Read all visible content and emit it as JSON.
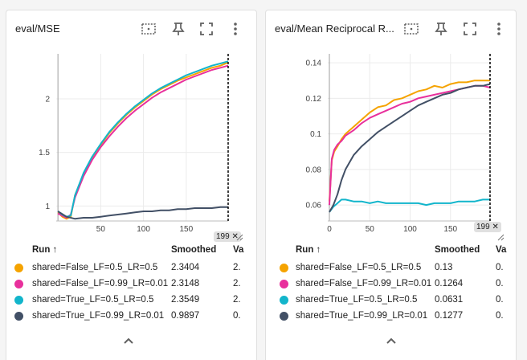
{
  "cards": [
    {
      "title": "eval/MSE",
      "table_headers": {
        "run": "Run ↑",
        "smoothed": "Smoothed",
        "value": "Va"
      },
      "rows": [
        {
          "name": "shared=False_LF=0.5_LR=0.5",
          "smoothed": "2.3404",
          "value": "2.",
          "color": "#f5a300"
        },
        {
          "name": "shared=False_LF=0.99_LR=0.01",
          "smoothed": "2.3148",
          "value": "2.",
          "color": "#e8309c"
        },
        {
          "name": "shared=True_LF=0.5_LR=0.5",
          "smoothed": "2.3549",
          "value": "2.",
          "color": "#12b5cb"
        },
        {
          "name": "shared=True_LF=0.99_LR=0.01",
          "smoothed": "0.9897",
          "value": "0.",
          "color": "#425066"
        }
      ],
      "step_badge": "199 ✕"
    },
    {
      "title": "eval/Mean Reciprocal R...",
      "table_headers": {
        "run": "Run ↑",
        "smoothed": "Smoothed",
        "value": "Va"
      },
      "rows": [
        {
          "name": "shared=False_LF=0.5_LR=0.5",
          "smoothed": "0.13",
          "value": "0.",
          "color": "#f5a300"
        },
        {
          "name": "shared=False_LF=0.99_LR=0.01",
          "smoothed": "0.1264",
          "value": "0.",
          "color": "#e8309c"
        },
        {
          "name": "shared=True_LF=0.5_LR=0.5",
          "smoothed": "0.0631",
          "value": "0.",
          "color": "#12b5cb"
        },
        {
          "name": "shared=True_LF=0.99_LR=0.01",
          "smoothed": "0.1277",
          "value": "0.",
          "color": "#425066"
        }
      ],
      "step_badge": "199 ✕"
    }
  ],
  "toolbar_icons": [
    "fit-domain-icon",
    "pin-icon",
    "fullscreen-icon",
    "more-vert-icon"
  ],
  "chart_data": [
    {
      "type": "line",
      "title": "eval/MSE",
      "xlabel": "",
      "ylabel": "",
      "xlim": [
        -2,
        199
      ],
      "ylim": [
        0.86,
        2.42
      ],
      "x_ticks": [
        "50",
        "100",
        "150"
      ],
      "x_tick_values": [
        50,
        100,
        150
      ],
      "y_ticks": [
        "1",
        "1.5",
        "2"
      ],
      "y_tick_values": [
        1,
        1.5,
        2
      ],
      "step_marker": 199,
      "series": [
        {
          "name": "shared=False_LF=0.5_LR=0.5",
          "color": "#f5a300",
          "x": [
            0,
            5,
            10,
            15,
            20,
            30,
            40,
            50,
            60,
            70,
            80,
            90,
            100,
            110,
            120,
            130,
            140,
            150,
            160,
            170,
            180,
            190,
            199
          ],
          "y": [
            0.94,
            0.9,
            0.88,
            0.9,
            1.1,
            1.3,
            1.45,
            1.57,
            1.68,
            1.77,
            1.85,
            1.92,
            1.98,
            2.04,
            2.09,
            2.13,
            2.17,
            2.2,
            2.23,
            2.26,
            2.29,
            2.31,
            2.34
          ]
        },
        {
          "name": "shared=False_LF=0.99_LR=0.01",
          "color": "#e8309c",
          "x": [
            0,
            5,
            10,
            15,
            20,
            30,
            40,
            50,
            60,
            70,
            80,
            90,
            100,
            110,
            120,
            130,
            140,
            150,
            160,
            170,
            180,
            190,
            199
          ],
          "y": [
            0.93,
            0.91,
            0.89,
            0.92,
            1.08,
            1.28,
            1.43,
            1.55,
            1.65,
            1.74,
            1.82,
            1.89,
            1.95,
            2.01,
            2.06,
            2.1,
            2.14,
            2.18,
            2.21,
            2.24,
            2.27,
            2.29,
            2.31
          ]
        },
        {
          "name": "shared=True_LF=0.5_LR=0.5",
          "color": "#12b5cb",
          "x": [
            0,
            5,
            10,
            15,
            20,
            30,
            40,
            50,
            60,
            70,
            80,
            90,
            100,
            110,
            120,
            130,
            140,
            150,
            160,
            170,
            180,
            190,
            199
          ],
          "y": [
            0.95,
            0.92,
            0.9,
            0.91,
            1.1,
            1.31,
            1.46,
            1.58,
            1.69,
            1.78,
            1.86,
            1.93,
            1.99,
            2.05,
            2.1,
            2.14,
            2.18,
            2.22,
            2.25,
            2.28,
            2.31,
            2.33,
            2.35
          ]
        },
        {
          "name": "shared=True_LF=0.99_LR=0.01",
          "color": "#425066",
          "x": [
            0,
            10,
            20,
            30,
            40,
            50,
            60,
            70,
            80,
            90,
            100,
            110,
            120,
            130,
            140,
            150,
            160,
            170,
            180,
            190,
            199
          ],
          "y": [
            0.95,
            0.9,
            0.88,
            0.89,
            0.89,
            0.9,
            0.91,
            0.92,
            0.93,
            0.94,
            0.95,
            0.95,
            0.96,
            0.96,
            0.97,
            0.97,
            0.98,
            0.98,
            0.98,
            0.99,
            0.99
          ]
        }
      ]
    },
    {
      "type": "line",
      "title": "eval/Mean Reciprocal R...",
      "xlabel": "",
      "ylabel": "",
      "xlim": [
        -2,
        199
      ],
      "ylim": [
        0.051,
        0.145
      ],
      "x_ticks": [
        "0",
        "50",
        "100",
        "150"
      ],
      "x_tick_values": [
        0,
        50,
        100,
        150
      ],
      "y_ticks": [
        "0.06",
        "0.08",
        "0.1",
        "0.12",
        "0.14"
      ],
      "y_tick_values": [
        0.06,
        0.08,
        0.1,
        0.12,
        0.14
      ],
      "step_marker": 199,
      "series": [
        {
          "name": "shared=False_LF=0.5_LR=0.5",
          "color": "#f5a300",
          "x": [
            0,
            3,
            6,
            10,
            15,
            20,
            30,
            40,
            50,
            60,
            70,
            80,
            90,
            100,
            110,
            120,
            130,
            140,
            150,
            160,
            170,
            180,
            190,
            199
          ],
          "y": [
            0.062,
            0.085,
            0.09,
            0.093,
            0.097,
            0.1,
            0.104,
            0.108,
            0.112,
            0.115,
            0.116,
            0.119,
            0.12,
            0.122,
            0.124,
            0.125,
            0.127,
            0.126,
            0.128,
            0.129,
            0.129,
            0.13,
            0.13,
            0.13
          ]
        },
        {
          "name": "shared=False_LF=0.99_LR=0.01",
          "color": "#e8309c",
          "x": [
            0,
            3,
            6,
            10,
            15,
            20,
            30,
            40,
            50,
            60,
            70,
            80,
            90,
            100,
            110,
            120,
            130,
            140,
            150,
            160,
            170,
            180,
            190,
            199
          ],
          "y": [
            0.06,
            0.086,
            0.091,
            0.094,
            0.096,
            0.099,
            0.102,
            0.106,
            0.109,
            0.111,
            0.113,
            0.115,
            0.117,
            0.118,
            0.12,
            0.121,
            0.122,
            0.123,
            0.124,
            0.125,
            0.126,
            0.127,
            0.127,
            0.126
          ]
        },
        {
          "name": "shared=True_LF=0.5_LR=0.5",
          "color": "#12b5cb",
          "x": [
            0,
            5,
            10,
            15,
            20,
            30,
            40,
            50,
            60,
            70,
            80,
            90,
            100,
            110,
            120,
            130,
            140,
            150,
            160,
            170,
            180,
            190,
            199
          ],
          "y": [
            0.056,
            0.059,
            0.061,
            0.063,
            0.063,
            0.062,
            0.062,
            0.061,
            0.062,
            0.061,
            0.061,
            0.061,
            0.061,
            0.061,
            0.06,
            0.061,
            0.061,
            0.061,
            0.062,
            0.062,
            0.062,
            0.063,
            0.063
          ]
        },
        {
          "name": "shared=True_LF=0.99_LR=0.01",
          "color": "#425066",
          "x": [
            0,
            5,
            10,
            15,
            20,
            30,
            40,
            50,
            60,
            70,
            80,
            90,
            100,
            110,
            120,
            130,
            140,
            150,
            160,
            170,
            180,
            190,
            199
          ],
          "y": [
            0.056,
            0.06,
            0.066,
            0.074,
            0.08,
            0.088,
            0.093,
            0.097,
            0.101,
            0.104,
            0.107,
            0.11,
            0.113,
            0.116,
            0.118,
            0.12,
            0.122,
            0.123,
            0.125,
            0.126,
            0.127,
            0.127,
            0.128
          ]
        }
      ]
    }
  ]
}
